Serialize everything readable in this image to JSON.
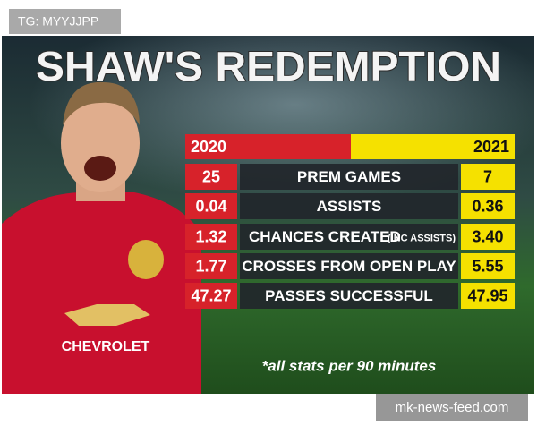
{
  "watermark": "TG: MYYJJPP",
  "title": "SHAW'S REDEMPTION",
  "table": {
    "headers": [
      "2020",
      "2021"
    ],
    "rows": [
      {
        "left": "25",
        "label": "PREM GAMES",
        "right": "7"
      },
      {
        "left": "0.04",
        "label": "ASSISTS",
        "right": "0.36"
      },
      {
        "left": "1.32",
        "label": "CHANCES CREATED",
        "note": "(INC ASSISTS)",
        "right": "3.40"
      },
      {
        "left": "1.77",
        "label": "CROSSES FROM OPEN PLAY",
        "right": "5.55"
      },
      {
        "left": "47.27",
        "label": "PASSES SUCCESSFUL",
        "right": "47.95"
      }
    ]
  },
  "player": {
    "shirt_text": "CHEVROLET"
  },
  "footnote": "*all stats per 90 minutes",
  "source": "mk-news-feed.com"
}
